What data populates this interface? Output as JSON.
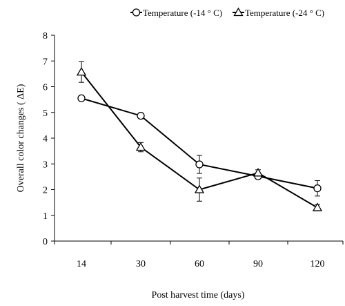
{
  "chart_data": {
    "type": "line",
    "title": "",
    "xlabel": "Post harvest time (days)",
    "ylabel": "Overall color changes ( ΔE)",
    "categories": [
      "14",
      "30",
      "60",
      "90",
      "120"
    ],
    "ylim": [
      0,
      8
    ],
    "yticks": [
      "0",
      "1",
      "2",
      "3",
      "4",
      "5",
      "6",
      "7",
      "8"
    ],
    "grid": false,
    "legend_position": "top",
    "series": [
      {
        "name": "Temperature (-14 ° C)",
        "marker": "circle",
        "values": [
          5.55,
          4.87,
          2.98,
          2.52,
          2.05
        ],
        "errors": [
          0.1,
          0.1,
          0.35,
          0.1,
          0.3
        ]
      },
      {
        "name": "Temperature (-24 ° C)",
        "marker": "triangle",
        "values": [
          6.57,
          3.65,
          2.0,
          2.65,
          1.3
        ],
        "errors": [
          0.4,
          0.18,
          0.45,
          0.12,
          0.12
        ]
      }
    ],
    "colors": {
      "line": "#000000",
      "background": "#ffffff"
    }
  }
}
